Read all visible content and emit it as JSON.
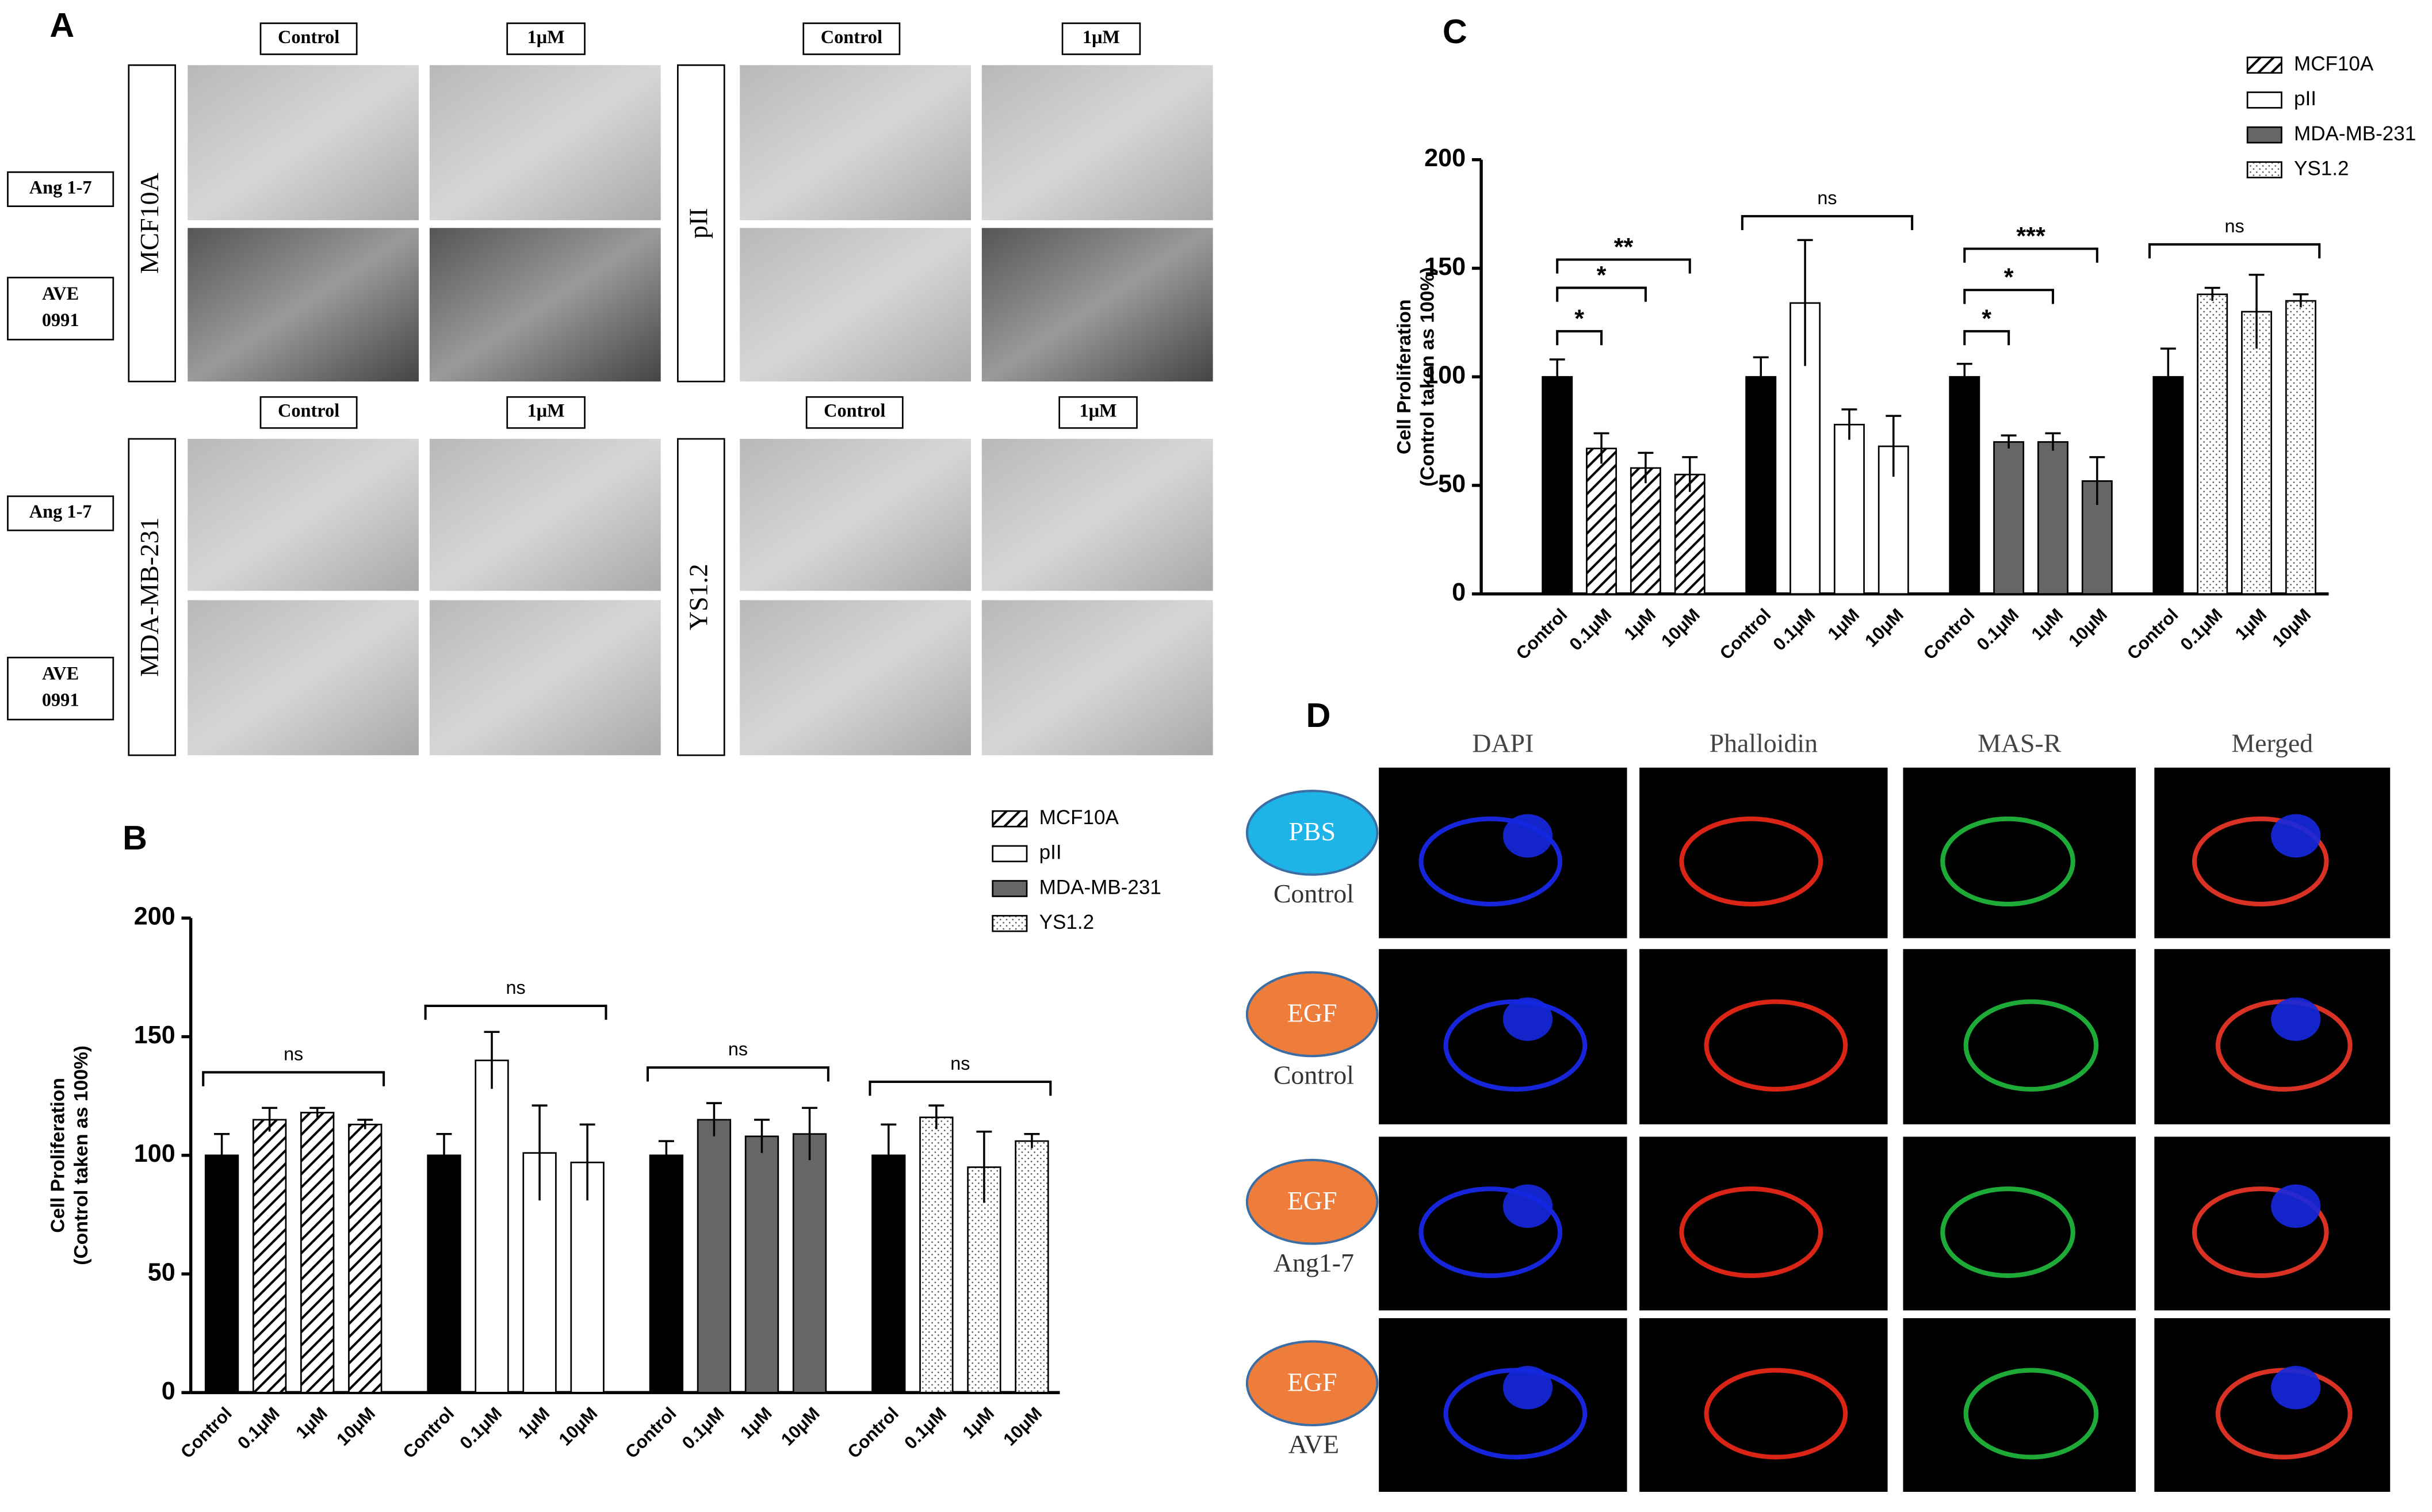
{
  "panel_a": {
    "label": "A",
    "blocks": [
      {
        "cell_line": "MCF10A",
        "columns": [
          "Control",
          "1μM"
        ],
        "rows": [
          [
            "Ang 1-7"
          ],
          [
            "AVE",
            "0991"
          ]
        ]
      },
      {
        "cell_line": "pII",
        "columns": [
          "Control",
          "1μM"
        ]
      },
      {
        "cell_line": "MDA-MB-231",
        "columns": [
          "Control",
          "1μM"
        ],
        "rows": [
          [
            "Ang 1-7"
          ],
          [
            "AVE",
            "0991"
          ]
        ]
      },
      {
        "cell_line": "YS1.2",
        "columns": [
          "Control",
          "1μM"
        ]
      }
    ]
  },
  "chart_data": [
    {
      "type": "bar",
      "panel": "B",
      "ylabel": [
        "Cell Proliferation",
        "(Control taken as 100%)"
      ],
      "categories": [
        "Control",
        "0.1μM",
        "1μM",
        "10μM"
      ],
      "control_color": "#000000",
      "legend": "top-right",
      "ylim": [
        0,
        200
      ],
      "yticks": [
        0,
        50,
        100,
        150,
        200
      ],
      "series": [
        {
          "name": "MCF10A",
          "color": "#ffffff",
          "pattern": "hatch",
          "values": [
            100,
            115,
            118,
            113
          ],
          "errors": [
            9,
            5,
            2,
            2
          ],
          "annotations": [
            {
              "label": "ns",
              "from": 0,
              "to": 3,
              "y": 135
            }
          ]
        },
        {
          "name": "pII",
          "color": "#ffffff",
          "pattern": "none",
          "values": [
            100,
            140,
            101,
            97
          ],
          "errors": [
            9,
            12,
            20,
            16
          ],
          "annotations": [
            {
              "label": "ns",
              "from": 0,
              "to": 3,
              "y": 163
            }
          ]
        },
        {
          "name": "MDA-MB-231",
          "color": "#666666",
          "pattern": "none",
          "values": [
            100,
            115,
            108,
            109
          ],
          "errors": [
            6,
            7,
            7,
            11
          ],
          "annotations": [
            {
              "label": "ns",
              "from": 0,
              "to": 3,
              "y": 137
            }
          ]
        },
        {
          "name": "YS1.2",
          "color": "#ffffff",
          "pattern": "dots",
          "values": [
            100,
            116,
            95,
            106
          ],
          "errors": [
            13,
            5,
            15,
            3
          ],
          "annotations": [
            {
              "label": "ns",
              "from": 0,
              "to": 3,
              "y": 131
            }
          ]
        }
      ]
    },
    {
      "type": "bar",
      "panel": "C",
      "ylabel": [
        "Cell Proliferation",
        "(Control taken as 100%)"
      ],
      "categories": [
        "Control",
        "0.1μM",
        "1μM",
        "10μM"
      ],
      "control_color": "#000000",
      "legend": "top-right",
      "ylim": [
        0,
        200
      ],
      "yticks": [
        0,
        50,
        100,
        150,
        200
      ],
      "series": [
        {
          "name": "MCF10A",
          "color": "#ffffff",
          "pattern": "hatch",
          "values": [
            100,
            67,
            58,
            55
          ],
          "errors": [
            8,
            7,
            7,
            8
          ],
          "annotations": [
            {
              "label": "*",
              "from": 0,
              "to": 1,
              "y": 121
            },
            {
              "label": "*",
              "from": 0,
              "to": 2,
              "y": 141
            },
            {
              "label": "**",
              "from": 0,
              "to": 3,
              "y": 154
            }
          ]
        },
        {
          "name": "pII",
          "color": "#ffffff",
          "pattern": "none",
          "values": [
            100,
            134,
            78,
            68
          ],
          "errors": [
            9,
            29,
            7,
            14
          ],
          "annotations": [
            {
              "label": "ns",
              "from": 0,
              "to": 3,
              "y": 174
            }
          ]
        },
        {
          "name": "MDA-MB-231",
          "color": "#666666",
          "pattern": "none",
          "values": [
            100,
            70,
            70,
            52
          ],
          "errors": [
            6,
            3,
            4,
            11
          ],
          "annotations": [
            {
              "label": "*",
              "from": 0,
              "to": 1,
              "y": 121
            },
            {
              "label": "*",
              "from": 0,
              "to": 2,
              "y": 140
            },
            {
              "label": "***",
              "from": 0,
              "to": 3,
              "y": 159
            }
          ]
        },
        {
          "name": "YS1.2",
          "color": "#ffffff",
          "pattern": "dots",
          "values": [
            100,
            138,
            130,
            135
          ],
          "errors": [
            13,
            3,
            17,
            3
          ],
          "annotations": [
            {
              "label": "ns",
              "from": 0,
              "to": 3,
              "y": 161
            }
          ]
        }
      ]
    }
  ],
  "panel_d": {
    "label": "D",
    "columns": [
      "DAPI",
      "Phalloidin",
      "MAS-R",
      "Merged"
    ],
    "rows": [
      {
        "badge": "PBS",
        "label": "Control"
      },
      {
        "badge": "EGF",
        "label": "Control"
      },
      {
        "badge": "EGF",
        "label": "Ang1-7"
      },
      {
        "badge": "EGF",
        "label": "AVE"
      }
    ]
  }
}
